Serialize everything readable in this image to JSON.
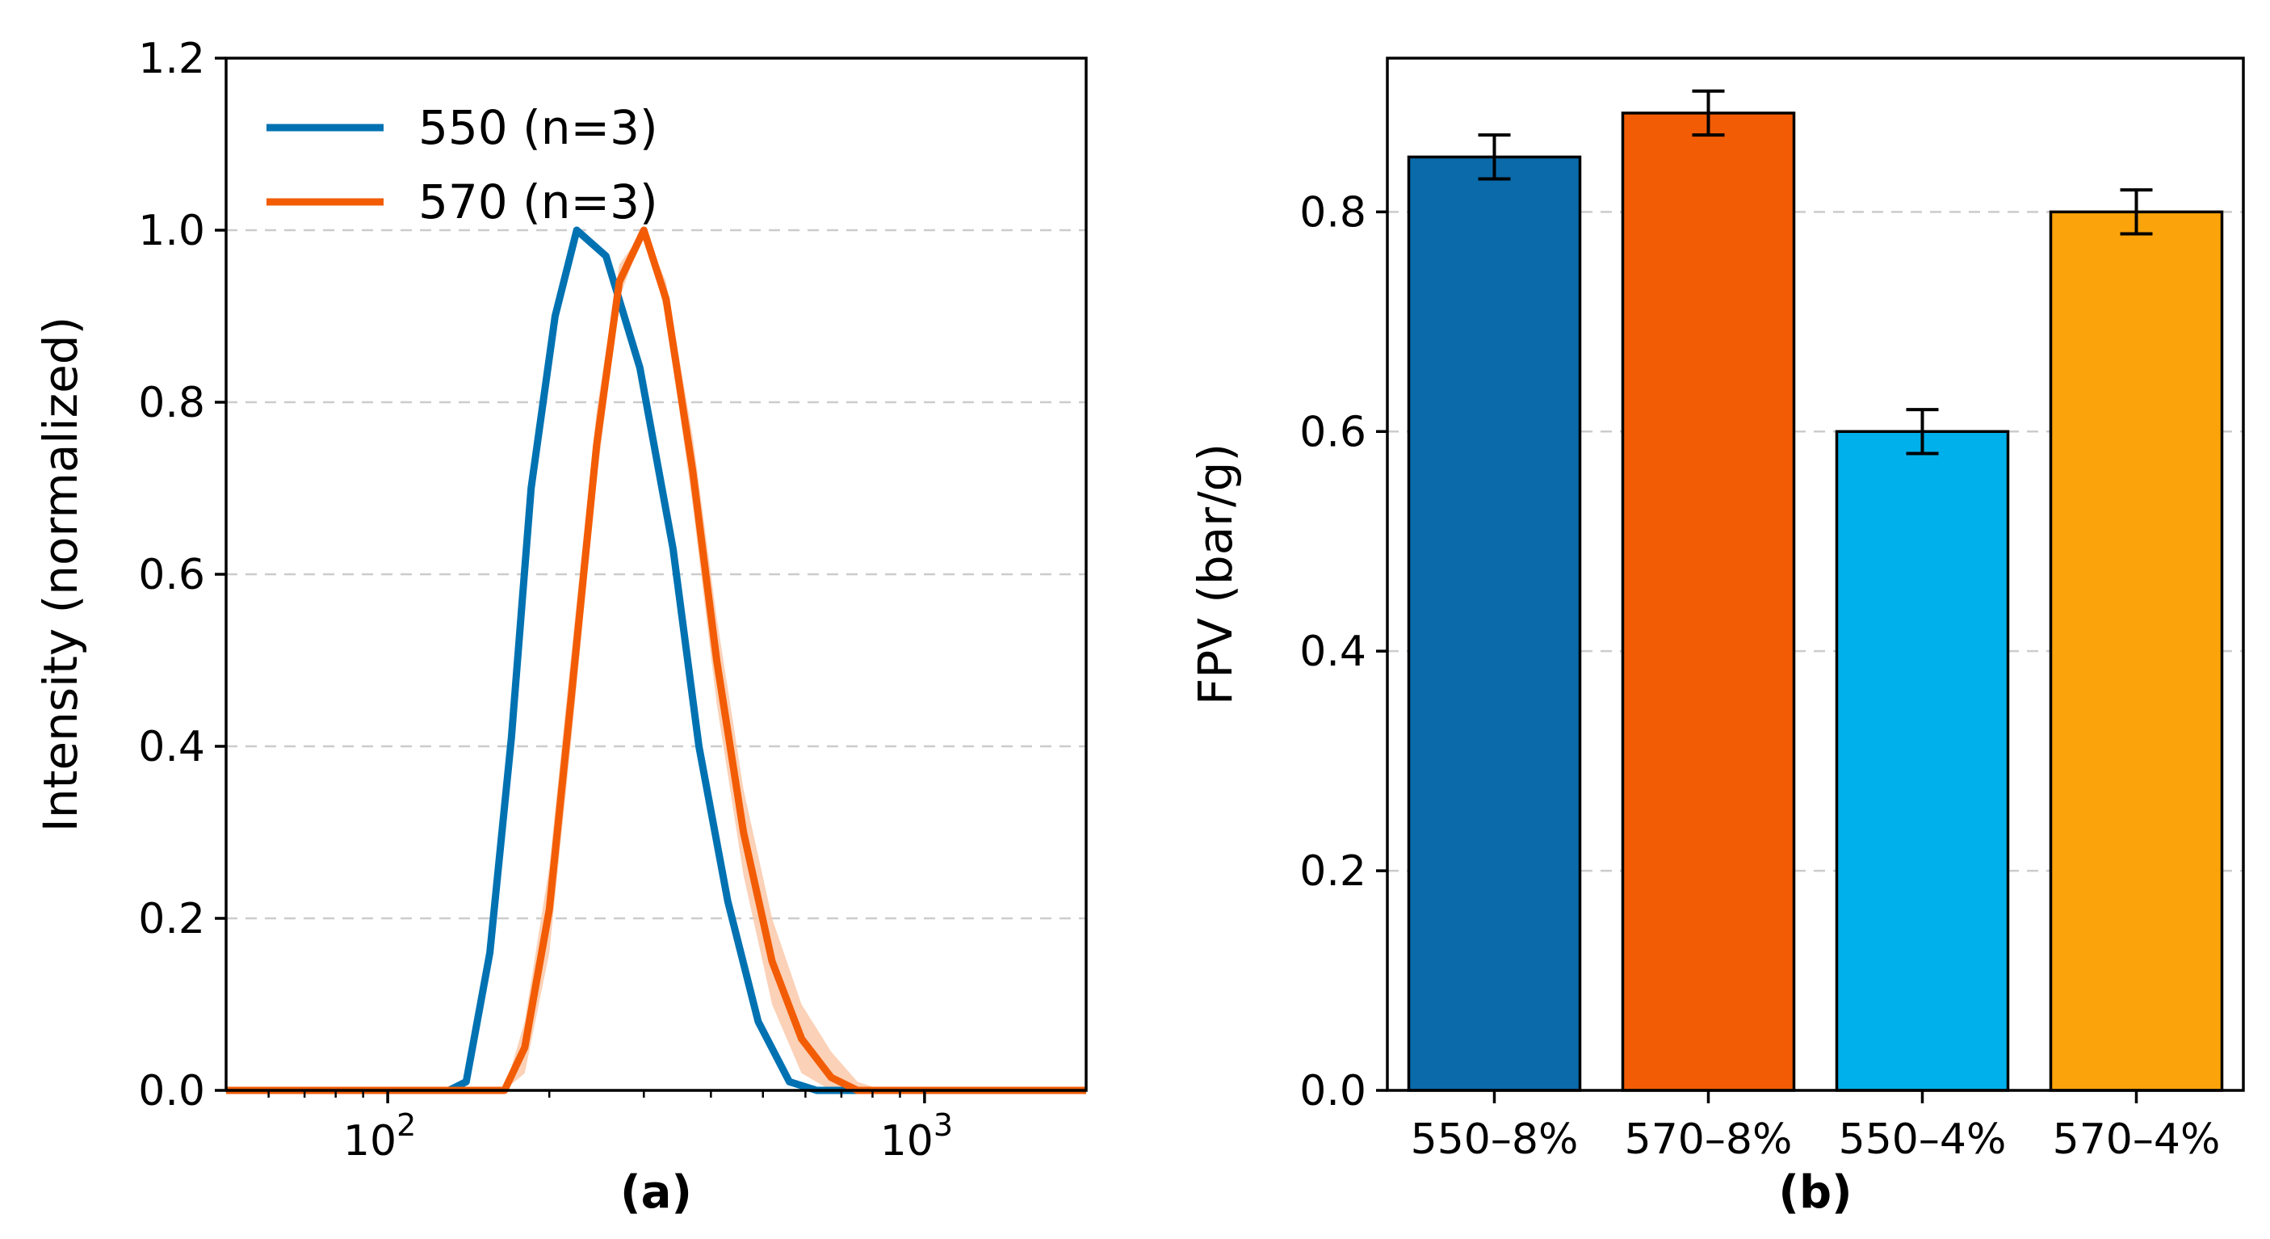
{
  "colors": {
    "series_550": "#0072B2",
    "series_570": "#F25C05",
    "band_570": "#FAC9AA",
    "grid": "#cccccc",
    "error_bar": "#000000",
    "bar_outline": "#000000"
  },
  "chart_data": [
    {
      "type": "line",
      "panel_label": "(a)",
      "xlabel": "",
      "ylabel": "Intensity (normalized)",
      "xscale": "log",
      "xlim": [
        50,
        2000
      ],
      "ylim": [
        0,
        1.2
      ],
      "x_ticks": [
        100,
        1000
      ],
      "x_tick_labels": [
        {
          "base": "10",
          "exp": "2"
        },
        {
          "base": "10",
          "exp": "3"
        }
      ],
      "y_ticks": [
        "0.0",
        "0.2",
        "0.4",
        "0.6",
        "0.8",
        "1.0",
        "1.2"
      ],
      "grid": "horizontal dashed",
      "legend_position": "top-left",
      "series": [
        {
          "name": "550 (n=3)",
          "color": "#0072B2",
          "x": [
            50,
            70,
            100,
            120,
            130,
            140,
            155,
            170,
            185,
            205,
            225,
            255,
            295,
            340,
            380,
            430,
            490,
            560,
            630,
            710,
            800,
            900,
            1000,
            1200,
            2000
          ],
          "y": [
            0,
            0,
            0,
            0,
            0.0,
            0.01,
            0.16,
            0.41,
            0.7,
            0.9,
            1.0,
            0.97,
            0.84,
            0.63,
            0.4,
            0.22,
            0.08,
            0.01,
            0,
            0,
            0,
            0,
            0,
            0,
            0
          ],
          "x_raw": [
            50,
            70,
            100,
            125,
            135,
            145,
            160,
            180,
            200,
            225,
            252,
            285,
            318,
            350,
            390,
            440,
            500,
            570,
            640,
            720,
            810,
            900,
            1000,
            1200,
            2000
          ]
        },
        {
          "name": "570 (n=3)",
          "color": "#F25C05",
          "x": [
            50,
            100,
            150,
            165,
            180,
            200,
            220,
            245,
            270,
            300,
            330,
            370,
            410,
            460,
            520,
            590,
            670,
            750,
            840,
            950,
            1080,
            1250,
            2000
          ],
          "y": [
            0,
            0,
            0,
            0.0,
            0.05,
            0.21,
            0.46,
            0.75,
            0.94,
            1.0,
            0.92,
            0.72,
            0.5,
            0.3,
            0.15,
            0.06,
            0.015,
            0,
            0,
            0,
            0,
            0,
            0
          ],
          "band_width": [
            0,
            0,
            0,
            0.0,
            0.03,
            0.05,
            0.05,
            0.04,
            0.02,
            0.0,
            0.02,
            0.04,
            0.05,
            0.05,
            0.05,
            0.04,
            0.03,
            0.01,
            0,
            0,
            0,
            0,
            0
          ]
        }
      ]
    },
    {
      "type": "bar",
      "panel_label": "(b)",
      "xlabel": "",
      "ylabel": "FPV (bar/g)",
      "ylim": [
        0,
        0.94
      ],
      "y_ticks": [
        "0.0",
        "0.2",
        "0.4",
        "0.6",
        "0.8"
      ],
      "grid": "horizontal dashed",
      "categories": [
        "550–8%",
        "570–8%",
        "550–4%",
        "570–4%"
      ],
      "values": [
        0.85,
        0.89,
        0.6,
        0.8
      ],
      "errors": [
        0.02,
        0.02,
        0.02,
        0.02
      ],
      "bar_colors": [
        "#0A6AAA",
        "#F25C05",
        "#00B0EA",
        "#FBA30A"
      ]
    }
  ]
}
